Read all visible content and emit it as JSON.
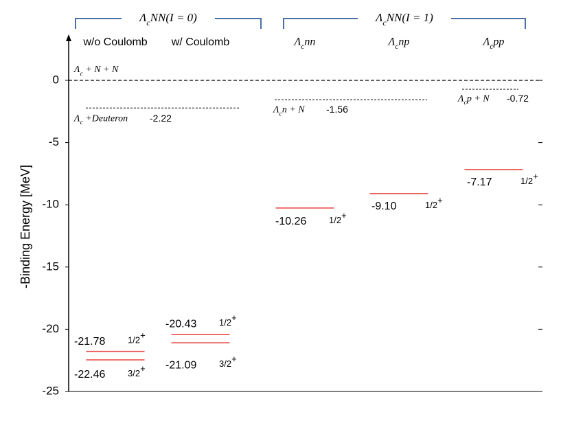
{
  "chart_data": {
    "type": "level",
    "y_label": "-Binding Energy [MeV]",
    "ylim": [
      -25,
      3.4
    ],
    "yticks": [
      0,
      -5,
      -10,
      -15,
      -20,
      -25
    ],
    "level_color": "#e8423f",
    "threshold_color": "#000000",
    "groups": [
      {
        "title": "ΛcNN(I = 0)",
        "columns": [
          {
            "name": "w/o Coulomb",
            "levels": [
              {
                "value": -21.78,
                "J": "1/2",
                "parity": "+"
              },
              {
                "value": -22.46,
                "J": "3/2",
                "parity": "+"
              }
            ]
          },
          {
            "name": "w/ Coulomb",
            "levels": [
              {
                "value": -20.43,
                "J": "1/2",
                "parity": "+"
              },
              {
                "value": -21.09,
                "J": "3/2",
                "parity": "+"
              }
            ]
          }
        ]
      },
      {
        "title": "ΛcNN(I = 1)",
        "columns": [
          {
            "name": "Λcnn",
            "levels": [
              {
                "value": -10.26,
                "J": "1/2",
                "parity": "+"
              }
            ]
          },
          {
            "name": "Λcnp",
            "levels": [
              {
                "value": -9.1,
                "value_label": "-9.10",
                "J": "1/2",
                "parity": "+"
              }
            ]
          },
          {
            "name": "Λcpp",
            "levels": [
              {
                "value": -7.17,
                "J": "1/2",
                "parity": "+"
              }
            ]
          }
        ]
      }
    ],
    "thresholds": [
      {
        "label": "Λc + N + N",
        "value": 0
      },
      {
        "label": "Λc +Deuteron",
        "value": -2.22
      },
      {
        "label": "Λcn + N",
        "value": -1.56
      },
      {
        "label": "Λcp + N",
        "value": -0.72
      }
    ]
  }
}
